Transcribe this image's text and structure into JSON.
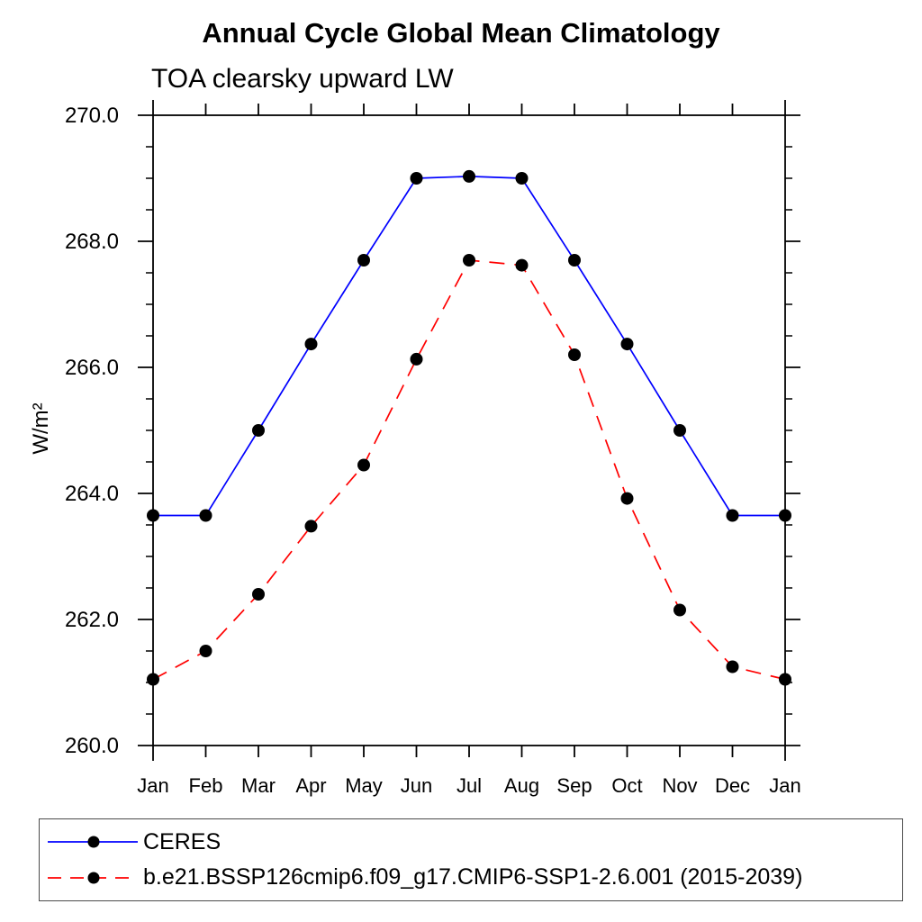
{
  "chart_data": {
    "type": "line",
    "title": "Annual Cycle Global Mean Climatology",
    "subtitle": "TOA clearsky upward LW",
    "xlabel": "",
    "ylabel": "W/m²",
    "x_categories": [
      "Jan",
      "Feb",
      "Mar",
      "Apr",
      "May",
      "Jun",
      "Jul",
      "Aug",
      "Sep",
      "Oct",
      "Nov",
      "Dec",
      "Jan"
    ],
    "ylim": [
      260.0,
      270.0
    ],
    "y_major_tick_step": 2.0,
    "y_minor_tick_step": 0.5,
    "y_tick_labels": [
      "260.0",
      "262.0",
      "264.0",
      "266.0",
      "268.0",
      "270.0"
    ],
    "grid": false,
    "legend_position": "bottom-left-box",
    "series": [
      {
        "name": "CERES",
        "line_color": "#0000ff",
        "line_style": "solid",
        "marker": "filled-circle",
        "marker_color": "#000000",
        "values": [
          263.65,
          263.65,
          265.0,
          266.37,
          267.7,
          269.0,
          269.03,
          269.0,
          267.7,
          266.37,
          265.0,
          263.65,
          263.65
        ]
      },
      {
        "name": "b.e21.BSSP126cmip6.f09_g17.CMIP6-SSP1-2.6.001 (2015-2039)",
        "line_color": "#ff0000",
        "line_style": "dashed",
        "marker": "filled-circle",
        "marker_color": "#000000",
        "values": [
          261.05,
          261.5,
          262.4,
          263.48,
          264.45,
          266.13,
          267.7,
          267.62,
          266.2,
          263.92,
          262.15,
          261.25,
          261.05
        ]
      }
    ]
  }
}
